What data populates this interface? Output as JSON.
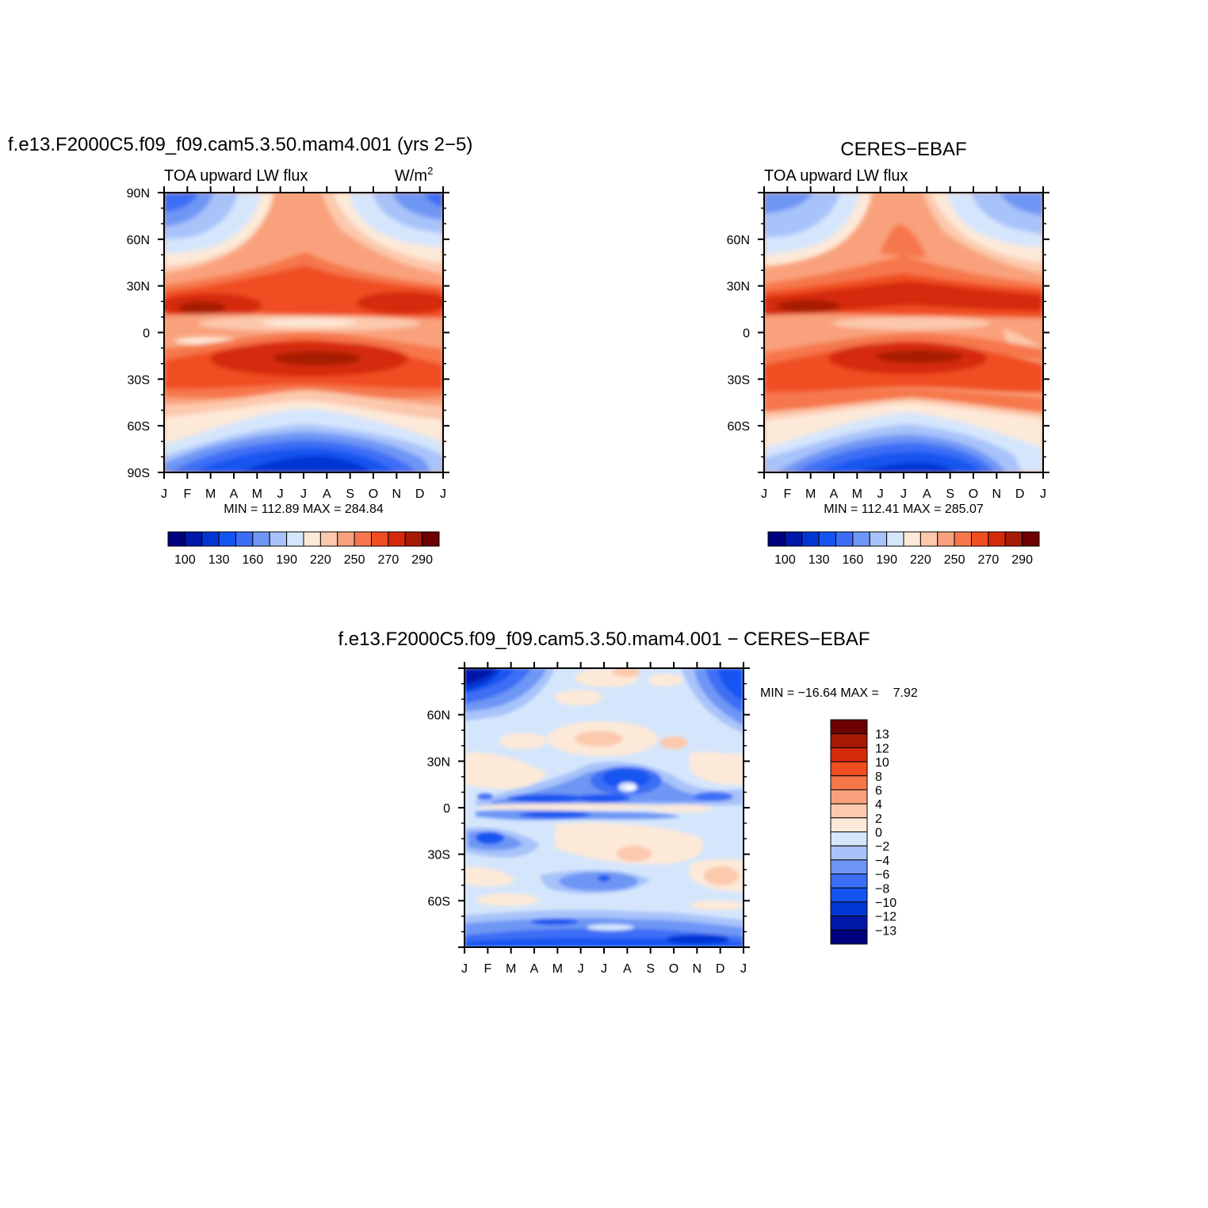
{
  "chart_data": [
    {
      "type": "heatmap",
      "id": "model",
      "title": "f.e13.F2000C5.f09_f09.cam5.3.50.mam4.001 (yrs 2−5)",
      "subtitle_left": "TOA upward LW flux",
      "units": "W/m",
      "units_sup": "2",
      "x": [
        "J",
        "F",
        "M",
        "A",
        "M",
        "J",
        "J",
        "A",
        "S",
        "O",
        "N",
        "D",
        "J"
      ],
      "y_ticks": [
        "90N",
        "60N",
        "30N",
        "0",
        "30S",
        "60S",
        "90S"
      ],
      "ylim": [
        -90,
        90
      ],
      "stats": "MIN = 112.89 MAX = 284.84",
      "min": 112.89,
      "max": 284.84,
      "colorbar_labels": [
        "100",
        "130",
        "160",
        "190",
        "220",
        "250",
        "270",
        "290"
      ]
    },
    {
      "type": "heatmap",
      "id": "obs",
      "title": "CERES−EBAF",
      "subtitle_left": "TOA upward LW flux",
      "x": [
        "J",
        "F",
        "M",
        "A",
        "M",
        "J",
        "J",
        "A",
        "S",
        "O",
        "N",
        "D",
        "J"
      ],
      "y_ticks": [
        "",
        "60N",
        "30N",
        "0",
        "30S",
        "60S",
        ""
      ],
      "ylim": [
        -90,
        90
      ],
      "stats": "MIN = 112.41 MAX = 285.07",
      "min": 112.41,
      "max": 285.07,
      "colorbar_labels": [
        "100",
        "130",
        "160",
        "190",
        "220",
        "250",
        "270",
        "290"
      ]
    },
    {
      "type": "heatmap",
      "id": "diff",
      "title": "f.e13.F2000C5.f09_f09.cam5.3.50.mam4.001 − CERES−EBAF",
      "x": [
        "J",
        "F",
        "M",
        "A",
        "M",
        "J",
        "J",
        "A",
        "S",
        "O",
        "N",
        "D",
        "J"
      ],
      "y_ticks": [
        "",
        "60N",
        "30N",
        "0",
        "30S",
        "60S",
        ""
      ],
      "ylim": [
        -90,
        90
      ],
      "stats": "MIN = −16.64 MAX =    7.92",
      "min": -16.64,
      "max": 7.92,
      "colorbar_labels": [
        "13",
        "12",
        "10",
        "8",
        "6",
        "4",
        "2",
        "0",
        "−2",
        "−4",
        "−6",
        "−8",
        "−10",
        "−12",
        "−13"
      ]
    }
  ],
  "colors": {
    "abs_levels": [
      "#00007f",
      "#0018a8",
      "#0236d4",
      "#1454f0",
      "#3c6ef5",
      "#6e96f5",
      "#a8c3fa",
      "#d5e6fc",
      "#fde9d8",
      "#fcc9ad",
      "#f9a17c",
      "#f6774c",
      "#f04d20",
      "#d52a0a",
      "#a71a06",
      "#6e0000"
    ],
    "diff_levels": [
      "#00007f",
      "#0018a8",
      "#0236d4",
      "#1454f0",
      "#3c6ef5",
      "#6e96f5",
      "#a8c3fa",
      "#d5e6fc",
      "#fde9d8",
      "#fcc9ad",
      "#f9a17c",
      "#f6774c",
      "#f04d20",
      "#d52a0a",
      "#a71a06",
      "#6e0000"
    ]
  }
}
